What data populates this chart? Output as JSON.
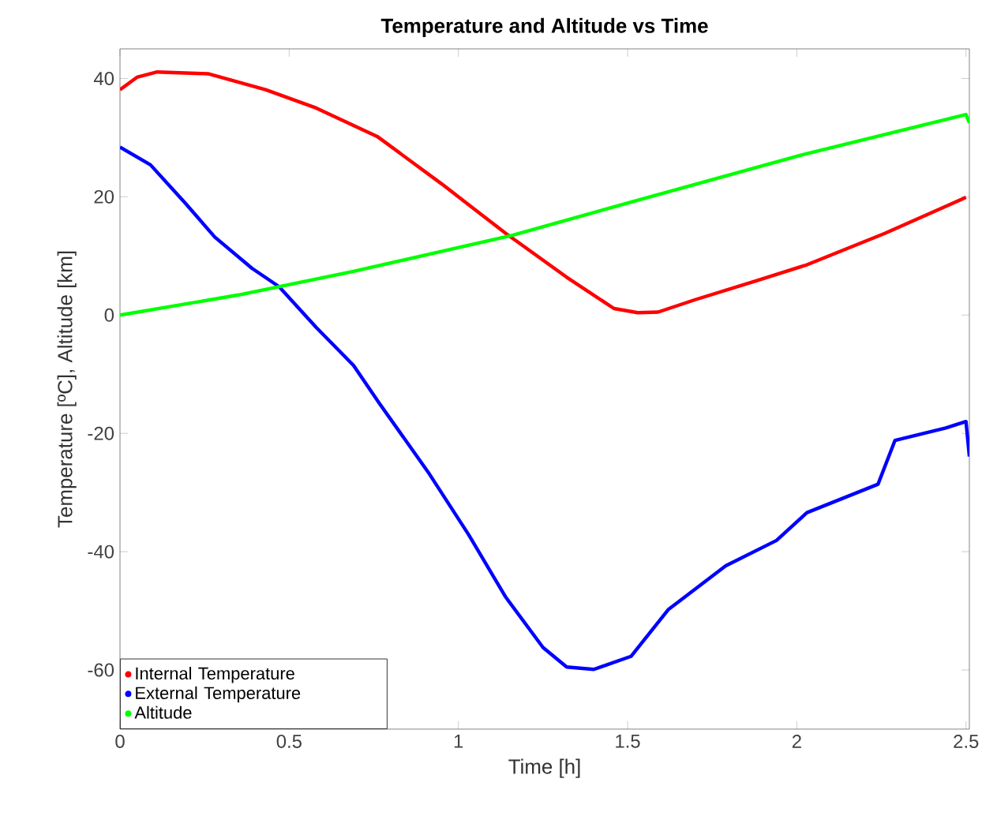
{
  "chart_data": {
    "type": "line",
    "title": "Temperature and Altitude vs Time",
    "xlabel": "Time [h]",
    "ylabel": "Temperature [ºC], Altitude [km]",
    "xlim": [
      0,
      2.51
    ],
    "ylim": [
      -70,
      45
    ],
    "xticks": [
      0,
      0.5,
      1,
      1.5,
      2,
      2.5
    ],
    "yticks": [
      -60,
      -40,
      -20,
      0,
      20,
      40
    ],
    "legend": "bottom left",
    "grid": false,
    "series": [
      {
        "name": "Internal Temperature",
        "color": "#ff0000",
        "x": [
          0,
          0.05,
          0.11,
          0.26,
          0.43,
          0.58,
          0.76,
          0.95,
          1.14,
          1.32,
          1.46,
          1.53,
          1.59,
          1.7,
          1.88,
          2.03,
          2.26,
          2.5
        ],
        "values": [
          38.1,
          40.2,
          41.1,
          40.8,
          38.1,
          35,
          30.2,
          22.2,
          13.8,
          6.4,
          1.1,
          0.4,
          0.5,
          2.6,
          5.8,
          8.5,
          13.8,
          19.9
        ]
      },
      {
        "name": "External Temperature",
        "color": "#0000ff",
        "x": [
          0,
          0.09,
          0.19,
          0.28,
          0.39,
          0.47,
          0.58,
          0.69,
          0.765,
          0.91,
          1.03,
          1.14,
          1.25,
          1.32,
          1.4,
          1.51,
          1.62,
          1.79,
          1.94,
          2.03,
          2.24,
          2.29,
          2.44,
          2.5,
          2.51
        ],
        "values": [
          28.4,
          25.4,
          19.1,
          13.2,
          7.9,
          4.8,
          -2.1,
          -8.5,
          -14.8,
          -26.5,
          -37.1,
          -47.7,
          -56.2,
          -59.5,
          -59.9,
          -57.7,
          -49.8,
          -42.4,
          -38.1,
          -33.4,
          -28.6,
          -21.2,
          -19.1,
          -18,
          -23.9
        ]
      },
      {
        "name": "Altitude",
        "color": "#00ff00",
        "x": [
          0,
          0.35,
          0.69,
          1.16,
          1.51,
          2.01,
          2.5,
          2.51
        ],
        "values": [
          0,
          3.4,
          7.4,
          13.5,
          19.1,
          27,
          33.9,
          32.5
        ]
      }
    ]
  }
}
